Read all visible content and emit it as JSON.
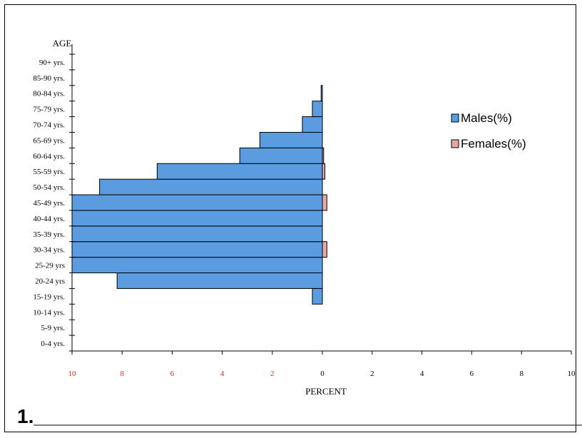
{
  "chart_data": {
    "type": "bar",
    "orientation": "horizontal",
    "variant": "population-pyramid",
    "ylabel": "AGE",
    "xlabel": "PERCENT",
    "categories": [
      "0-4 yrs.",
      "5-9 yrs.",
      "10-14 yrs.",
      "15-19 yrs.",
      "20-24 yrs",
      "25-29 yrs",
      "30-34 yrs.",
      "35-39 yrs.",
      "40-44 yrs.",
      "45-49 yrs.",
      "50-54 yrs.",
      "55-59 yrs.",
      "60-64 yrs.",
      "65-69 yrs.",
      "70-74 yrs.",
      "75-79 yrs.",
      "80-84 yrs.",
      "85-90 yrs.",
      "90+ yrs."
    ],
    "series": [
      {
        "name": "Males(%)",
        "side": "left",
        "color": "#5b9be0",
        "values": [
          0,
          0,
          0,
          0.4,
          8.2,
          10,
          10,
          10,
          10,
          10,
          8.9,
          6.6,
          3.3,
          2.5,
          0.8,
          0.4,
          0.05,
          0,
          0
        ]
      },
      {
        "name": "Females(%)",
        "side": "right",
        "color": "#e8a8a8",
        "values": [
          0,
          0,
          0,
          0,
          0,
          0,
          0.18,
          0,
          0,
          0.18,
          0,
          0.1,
          0.05,
          0,
          0,
          0,
          0,
          0,
          0
        ]
      }
    ],
    "xticks_left": [
      "10",
      "8",
      "6",
      "4",
      "2"
    ],
    "xticks_right": [
      "0",
      "2",
      "4",
      "6",
      "8",
      "10"
    ],
    "xlim": [
      -10,
      10
    ],
    "tick_colors": {
      "left": "#e8271c",
      "right": "#000000"
    },
    "legend_position": "right",
    "grid": false
  },
  "caption": "1.__________________________________________________"
}
